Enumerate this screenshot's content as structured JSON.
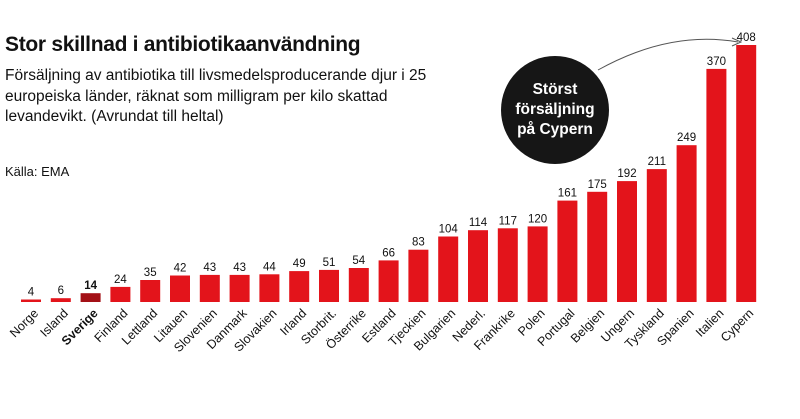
{
  "header": {
    "title": "Stor skillnad i antibiotikaanvändning",
    "subtitle": "Försäljning av antibiotika till livsmedelsproducerande djur i 25 europeiska länder, räknat som milligram per kilo skattad levandevikt. (Avrundat till heltal)",
    "source": "Källa: EMA"
  },
  "callout": {
    "text": "Störst försäljning på Cypern"
  },
  "colors": {
    "bar": "#e3141b",
    "highlight": "#a31016",
    "callout_bg": "#161616",
    "arrow": "#555555"
  },
  "chart_data": {
    "type": "bar",
    "title": "Stor skillnad i antibiotikaanvändning",
    "xlabel": "",
    "ylabel": "",
    "ylim": [
      0,
      408
    ],
    "highlight": "Sverige",
    "categories": [
      "Norge",
      "Island",
      "Sverige",
      "Finland",
      "Lettland",
      "Litauen",
      "Slovenien",
      "Danmark",
      "Slovakien",
      "Irland",
      "Storbrit.",
      "Österrike",
      "Estland",
      "Tjeckien",
      "Bulgarien",
      "Nederl.",
      "Frankrike",
      "Polen",
      "Portugal",
      "Belgien",
      "Ungern",
      "Tyskland",
      "Spanien",
      "Italien",
      "Cypern"
    ],
    "values": [
      4,
      6,
      14,
      24,
      35,
      42,
      43,
      43,
      44,
      49,
      51,
      54,
      66,
      83,
      104,
      114,
      117,
      120,
      161,
      175,
      192,
      211,
      249,
      370,
      408
    ]
  }
}
